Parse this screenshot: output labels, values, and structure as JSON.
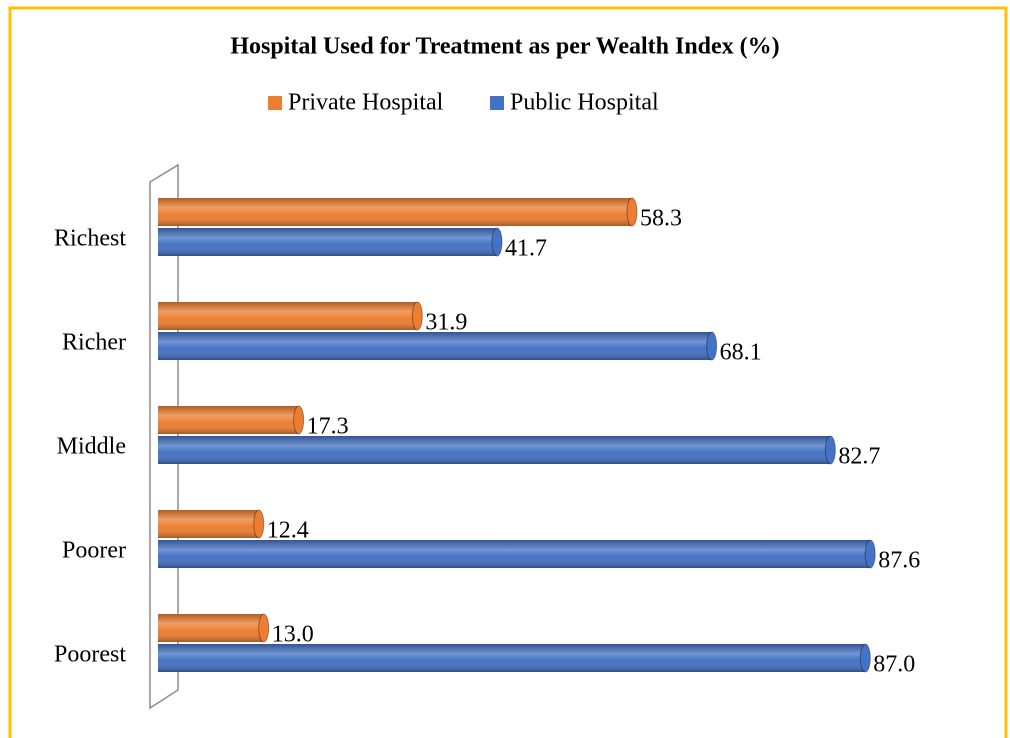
{
  "chart_data": {
    "type": "hbar",
    "title": "Hospital Used for Treatment as per Wealth Index (%)",
    "categories": [
      "Richest",
      "Richer",
      "Middle",
      "Poorer",
      "Poorest"
    ],
    "series": [
      {
        "name": "Private Hospital",
        "color": "#ed7d31",
        "values": [
          58.3,
          31.9,
          17.3,
          12.4,
          13.0
        ],
        "value_labels": [
          "58.3",
          "31.9",
          "17.3",
          "12.4",
          "13.0"
        ]
      },
      {
        "name": "Public Hospital",
        "color": "#4472c4",
        "values": [
          41.7,
          68.1,
          82.7,
          87.6,
          87.0
        ],
        "value_labels": [
          "41.7",
          "68.1",
          "82.7",
          "87.6",
          "87.0"
        ]
      }
    ],
    "xlim": [
      0,
      100
    ],
    "legend": "top"
  }
}
